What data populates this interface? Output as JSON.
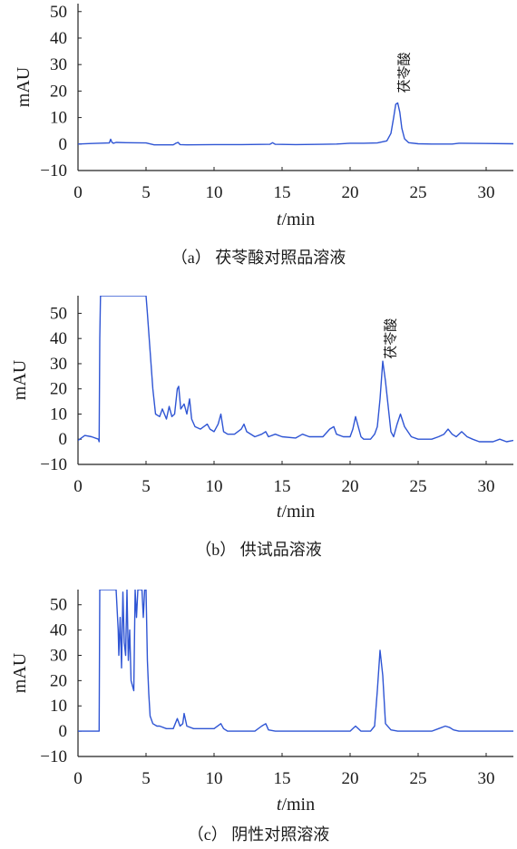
{
  "figure": {
    "panels": [
      {
        "caption": "（a） 茯苓酸对照品溶液"
      },
      {
        "caption": "（b） 供试品溶液"
      },
      {
        "caption": "（c） 阴性对照溶液"
      }
    ]
  },
  "chart_data": [
    {
      "type": "line",
      "title": "",
      "caption": "（a） 茯苓酸对照品溶液",
      "xlabel_italic": "t",
      "xlabel_unit": "/min",
      "ylabel": "mAU",
      "xlim": [
        0,
        32
      ],
      "ylim": [
        -10,
        53
      ],
      "xticks": [
        0,
        5,
        10,
        15,
        20,
        25,
        30
      ],
      "yticks": [
        -10,
        0,
        10,
        20,
        30,
        40,
        50
      ],
      "grid": false,
      "color": "#2f55d4",
      "annotations": [
        {
          "text": "茯苓酸",
          "x": 24.3,
          "y": 27
        }
      ],
      "series": [
        {
          "x": [
            0,
            1,
            2.3,
            2.4,
            2.5,
            2.6,
            2.8,
            3.5,
            5,
            5.6,
            7,
            7.2,
            7.35,
            7.5,
            8,
            10,
            12,
            14.1,
            14.3,
            14.5,
            16,
            18,
            19,
            20,
            21,
            22,
            22.7,
            23.0,
            23.2,
            23.35,
            23.5,
            23.65,
            23.8,
            24.0,
            24.3,
            25,
            26,
            27.5,
            28,
            30,
            32
          ],
          "y": [
            0,
            0.2,
            0.4,
            1.8,
            0.6,
            0.3,
            0.6,
            0.5,
            0.4,
            -0.3,
            -0.3,
            0.3,
            0.6,
            -0.2,
            -0.3,
            -0.2,
            -0.2,
            -0.1,
            0.5,
            -0.1,
            -0.2,
            -0.1,
            0,
            0.3,
            0.3,
            0.4,
            1.2,
            4,
            10,
            15,
            15.5,
            12,
            6,
            2,
            0.5,
            0.1,
            0,
            0,
            0.3,
            0.2,
            0.1
          ]
        }
      ]
    },
    {
      "type": "line",
      "title": "",
      "caption": "（b） 供试品溶液",
      "xlabel_italic": "t",
      "xlabel_unit": "/min",
      "ylabel": "mAU",
      "xlim": [
        0,
        32
      ],
      "ylim": [
        -10,
        57
      ],
      "xticks": [
        0,
        5,
        10,
        15,
        20,
        25,
        30
      ],
      "yticks": [
        -10,
        0,
        10,
        20,
        30,
        40,
        50
      ],
      "grid": false,
      "color": "#2f55d4",
      "annotations": [
        {
          "text": "茯苓酸",
          "x": 23.3,
          "y": 40
        }
      ],
      "series": [
        {
          "x": [
            0,
            0.5,
            1,
            1.5,
            1.55,
            1.6,
            1.65,
            1.7,
            2,
            3,
            4,
            4.8,
            5.0,
            5.1,
            5.3,
            5.5,
            5.7,
            6,
            6.2,
            6.5,
            6.7,
            6.9,
            7.1,
            7.3,
            7.4,
            7.55,
            7.8,
            8.0,
            8.2,
            8.35,
            8.6,
            9,
            9.5,
            9.7,
            10,
            10.3,
            10.5,
            10.7,
            11,
            11.5,
            12,
            12.2,
            12.4,
            13,
            13.5,
            13.8,
            14,
            14.5,
            15,
            16,
            16.5,
            17,
            18,
            18.5,
            18.8,
            19,
            19.5,
            20,
            20.2,
            20.4,
            20.6,
            20.8,
            21,
            21.5,
            21.8,
            22.0,
            22.2,
            22.4,
            22.6,
            23,
            23.2,
            23.45,
            23.7,
            24,
            24.5,
            25,
            26,
            26.5,
            26.9,
            27.2,
            27.5,
            27.8,
            28.2,
            28.6,
            29,
            29.5,
            30,
            30.5,
            31,
            31.5,
            32
          ],
          "y": [
            -0.5,
            1.5,
            1,
            0,
            -1,
            40,
            57,
            57,
            57,
            57,
            57,
            57,
            57,
            50,
            35,
            20,
            10,
            9,
            12,
            8,
            13,
            9,
            10,
            20,
            21,
            12,
            14,
            10,
            16,
            8,
            5,
            4,
            6,
            4,
            3,
            6,
            10,
            3,
            2,
            2,
            4,
            6,
            3,
            1,
            2,
            3,
            1,
            2,
            1,
            0.5,
            2,
            1,
            1,
            4,
            5,
            2,
            1,
            1,
            4,
            9,
            5,
            1,
            0,
            0,
            2,
            5,
            16,
            31,
            23,
            3,
            1,
            6,
            10,
            5,
            1,
            0,
            0,
            1,
            2,
            4,
            2,
            1,
            3,
            1,
            0,
            -1,
            -1,
            -1,
            0,
            -1,
            -0.5
          ]
        }
      ]
    },
    {
      "type": "line",
      "title": "",
      "caption": "（c） 阴性对照溶液",
      "xlabel_italic": "t",
      "xlabel_unit": "/min",
      "ylabel": "mAU",
      "xlim": [
        0,
        32
      ],
      "ylim": [
        -10,
        56
      ],
      "xticks": [
        0,
        5,
        10,
        15,
        20,
        25,
        30
      ],
      "yticks": [
        -10,
        0,
        10,
        20,
        30,
        40,
        50
      ],
      "grid": false,
      "color": "#2f55d4",
      "annotations": [],
      "series": [
        {
          "x": [
            0,
            1,
            1.5,
            1.55,
            1.6,
            2,
            2.5,
            2.8,
            2.95,
            3.0,
            3.1,
            3.2,
            3.3,
            3.4,
            3.5,
            3.6,
            3.7,
            3.8,
            3.9,
            4.0,
            4.1,
            4.2,
            4.3,
            4.4,
            4.5,
            4.6,
            4.7,
            4.8,
            4.9,
            5.0,
            5.1,
            5.2,
            5.3,
            5.5,
            5.8,
            6,
            6.5,
            7,
            7.3,
            7.5,
            7.7,
            7.8,
            8,
            8.5,
            9,
            10,
            10.5,
            10.7,
            11,
            12,
            13,
            13.5,
            13.8,
            14,
            14.5,
            15,
            16,
            17,
            18,
            19,
            20,
            20.2,
            20.4,
            20.6,
            20.8,
            21,
            21.5,
            21.8,
            22.0,
            22.2,
            22.4,
            22.6,
            23,
            23.5,
            24,
            25,
            26,
            26.5,
            27,
            27.3,
            27.6,
            28,
            29,
            30,
            31,
            32
          ],
          "y": [
            0,
            0,
            0,
            0,
            56,
            56,
            56,
            56,
            40,
            30,
            45,
            25,
            55,
            35,
            30,
            56,
            28,
            40,
            20,
            18,
            16,
            56,
            45,
            56,
            56,
            56,
            56,
            45,
            56,
            56,
            28,
            15,
            6,
            3,
            2,
            2,
            1,
            1,
            5,
            2,
            3,
            7,
            2,
            1,
            1,
            1,
            3,
            1,
            0,
            0,
            0,
            2,
            3,
            0.5,
            0,
            0,
            0,
            0,
            0,
            0,
            0,
            1,
            2,
            1,
            0,
            0,
            0,
            2,
            16,
            32,
            22,
            3,
            0.5,
            0,
            0,
            0,
            0,
            1,
            2,
            1.5,
            0.5,
            0,
            0,
            0,
            0,
            0
          ]
        }
      ]
    }
  ]
}
